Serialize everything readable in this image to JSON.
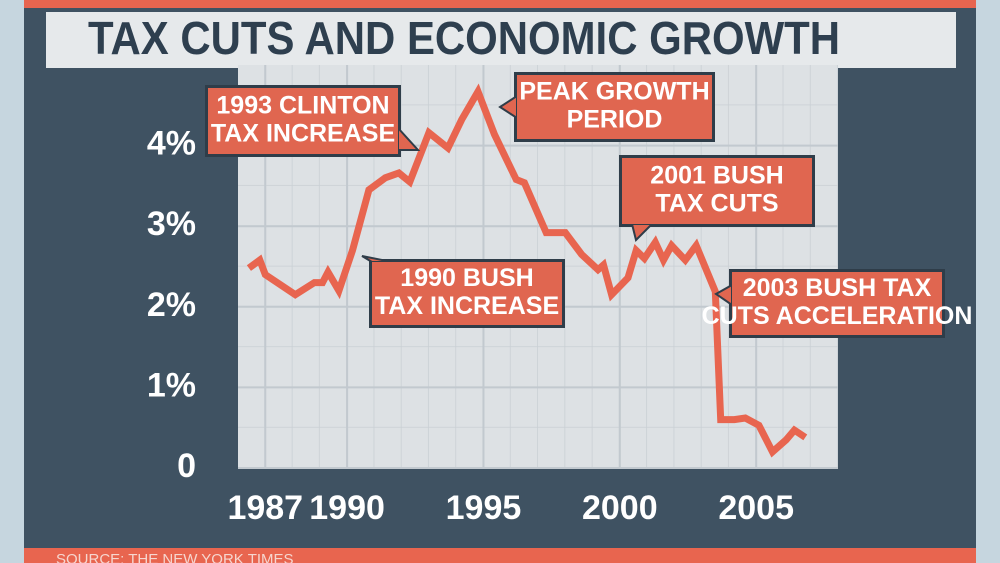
{
  "chart_data": {
    "type": "line",
    "title": "TAX CUTS AND ECONOMIC GROWTH",
    "x": [
      1986.4,
      1986.8,
      1987.0,
      1988.1,
      1988.8,
      1989.1,
      1989.3,
      1989.7,
      1990.2,
      1990.8,
      1991.4,
      1991.9,
      1992.3,
      1993.0,
      1993.7,
      1994.2,
      1994.8,
      1995.4,
      1996.2,
      1996.5,
      1997.3,
      1998.0,
      1998.6,
      1999.2,
      1999.4,
      1999.7,
      2000.3,
      2000.6,
      2000.9,
      2001.3,
      2001.6,
      2001.9,
      2002.4,
      2002.8,
      2003.5,
      2003.7,
      2004.2,
      2004.6,
      2005.1,
      2005.6,
      2006.1,
      2006.4,
      2006.8
    ],
    "values": [
      2.48,
      2.58,
      2.4,
      2.15,
      2.3,
      2.3,
      2.43,
      2.2,
      2.7,
      3.45,
      3.6,
      3.66,
      3.55,
      4.16,
      3.97,
      4.32,
      4.67,
      4.14,
      3.58,
      3.54,
      2.92,
      2.92,
      2.65,
      2.46,
      2.52,
      2.15,
      2.36,
      2.7,
      2.6,
      2.8,
      2.58,
      2.76,
      2.58,
      2.76,
      2.19,
      0.6,
      0.6,
      0.62,
      0.53,
      0.2,
      0.35,
      0.47,
      0.38
    ],
    "color": "#e8654f",
    "xlim": [
      1986,
      2008
    ],
    "xticks": [
      1987,
      1990,
      1995,
      2000,
      2005
    ],
    "ylim": [
      0,
      5
    ],
    "yticks": [
      0,
      {
        "value": 1,
        "label": "1%"
      },
      {
        "value": 2,
        "label": "2%"
      },
      {
        "value": 3,
        "label": "3%"
      },
      {
        "value": 4,
        "label": "4%"
      }
    ],
    "grid": true,
    "annotations": [
      {
        "lines": [
          "1993 CLINTON",
          "TAX INCREASE"
        ]
      },
      {
        "lines": [
          "PEAK GROWTH",
          "PERIOD"
        ]
      },
      {
        "lines": [
          "2001 BUSH",
          "TAX CUTS"
        ]
      },
      {
        "lines": [
          "1990 BUSH",
          "TAX INCREASE"
        ]
      },
      {
        "lines": [
          "2003 BUSH TAX",
          "CUTS ACCELERATION"
        ]
      }
    ],
    "source": "SOURCE: THE NEW YORK TIMES"
  }
}
